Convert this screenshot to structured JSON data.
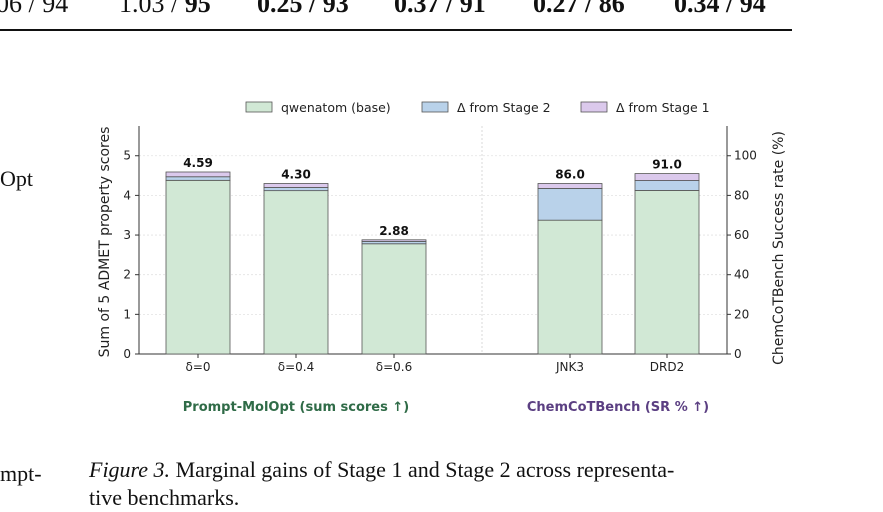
{
  "table_fragment": {
    "cells": [
      {
        "plain": "06 / 94",
        "bold": ""
      },
      {
        "plain": "1.03 / ",
        "bold": "95"
      },
      {
        "plain": "",
        "bold": "0.25 / 93"
      },
      {
        "plain": "",
        "bold": "0.37 / 91"
      },
      {
        "plain": "",
        "bold": "0.27 / 86"
      },
      {
        "plain": "",
        "bold": "0.34 / 94"
      }
    ]
  },
  "left_fragments": [
    "Opt",
    "mpt-"
  ],
  "caption": {
    "label": "Figure 3.",
    "line1": " Marginal gains of Stage 1 and Stage 2 across representa-",
    "line2": "tive benchmarks."
  },
  "colors": {
    "base": "#d1e8d5",
    "stage2": "#b9d2ea",
    "stage1": "#dbc9ec",
    "group1_label": "#2f6b47",
    "group2_label": "#5b3f82"
  },
  "chart_data": {
    "type": "bar",
    "stacked": true,
    "legend": [
      "qwenatom (base)",
      "Δ from Stage 2",
      "Δ from Stage 1"
    ],
    "legend_position": "top",
    "left_axis": {
      "label": "Sum of 5 ADMET property scores",
      "ylim": [
        0,
        5.75
      ],
      "ticks": [
        0,
        1,
        2,
        3,
        4,
        5
      ]
    },
    "right_axis": {
      "label": "ChemCoTBench Success rate (%)",
      "ylim": [
        0,
        115
      ],
      "ticks": [
        0,
        20,
        40,
        60,
        80,
        100
      ]
    },
    "groups": [
      {
        "label": "Prompt-MolOpt (sum scores ↑)",
        "axis": "left",
        "categories": [
          "δ=0",
          "δ=0.4",
          "δ=0.6"
        ],
        "base": [
          4.38,
          4.12,
          2.78
        ],
        "stage2": [
          0.09,
          0.08,
          0.06
        ],
        "stage1": [
          0.12,
          0.1,
          0.04
        ],
        "totals": [
          "4.59",
          "4.30",
          "2.88"
        ]
      },
      {
        "label": "ChemCoTBench (SR % ↑)",
        "axis": "right",
        "categories": [
          "JNK3",
          "DRD2"
        ],
        "base": [
          67.5,
          82.5
        ],
        "stage2": [
          16.0,
          5.0
        ],
        "stage1": [
          2.5,
          3.5
        ],
        "totals": [
          "86.0",
          "91.0"
        ]
      }
    ],
    "grid": "horizontal dotted"
  }
}
